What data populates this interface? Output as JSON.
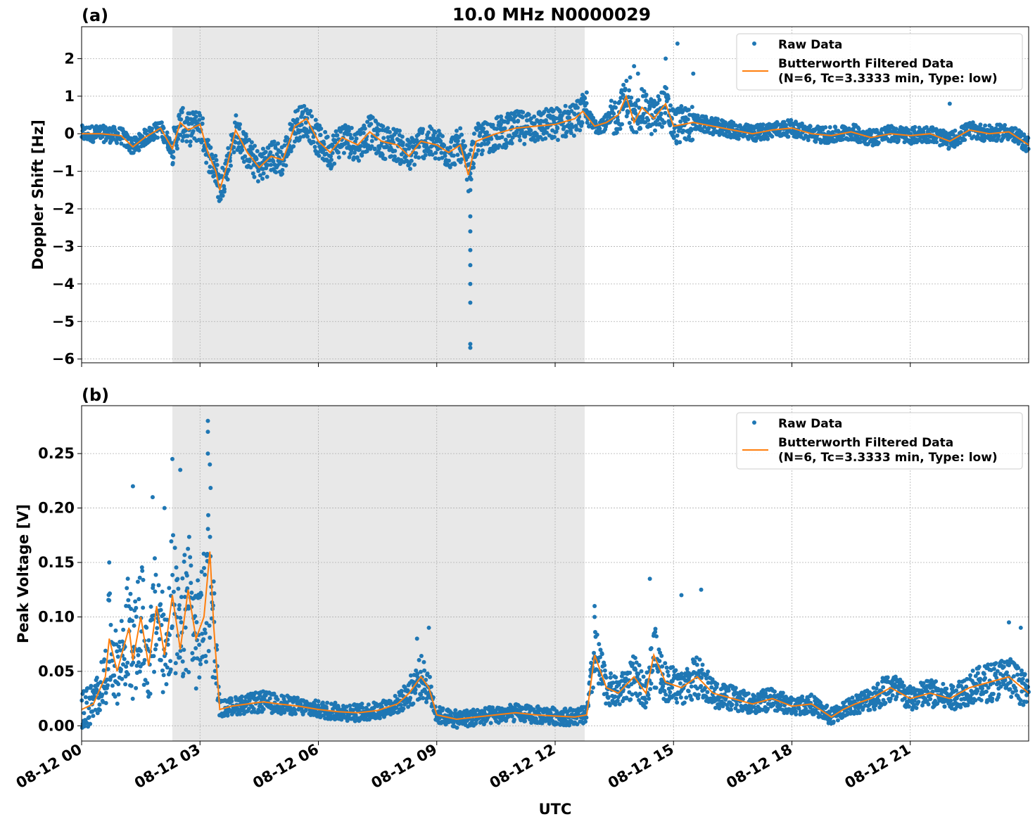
{
  "figure": {
    "title": "10.0 MHz N0000029",
    "xlabel": "UTC",
    "panel_a_label": "(a)",
    "panel_b_label": "(b)",
    "colors": {
      "raw": "#1f77b4",
      "filtered": "#ff7f0e",
      "shade": "#e8e8e8",
      "grid": "#b0b0b0"
    }
  },
  "chart_data": [
    {
      "type": "scatter",
      "panel": "(a)",
      "title": "10.0 MHz N0000029",
      "xlabel": "",
      "ylabel": "Doppler Shift [Hz]",
      "x_unit": "hours since 08-12 00 UTC",
      "xlim": [
        "08-12 00",
        "08-13 00"
      ],
      "ylim": [
        -6.1,
        2.85
      ],
      "x_tick_labels": [
        "08-12 00",
        "08-12 03",
        "08-12 06",
        "08-12 09",
        "08-12 12",
        "08-12 15",
        "08-12 18",
        "08-12 21"
      ],
      "y_ticks": [
        -6,
        -5,
        -4,
        -3,
        -2,
        -1,
        0,
        1,
        2
      ],
      "y_tick_labels": [
        "−6",
        "−5",
        "−4",
        "−3",
        "−2",
        "−1",
        "0",
        "1",
        "2"
      ],
      "shaded_span": [
        "08-12 02:18",
        "08-12 12:45"
      ],
      "grid": true,
      "legend": {
        "placement": "top-right",
        "entries": [
          "Raw Data",
          "Butterworth Filtered Data",
          "(N=6, Tc=3.3333 min, Type: low)"
        ]
      },
      "series": [
        {
          "name": "Butterworth Filtered Data",
          "kind": "line",
          "x": [
            0,
            0.5,
            1,
            1.3,
            1.6,
            2,
            2.3,
            2.5,
            2.7,
            3,
            3.2,
            3.4,
            3.5,
            3.7,
            3.9,
            4.2,
            4.5,
            4.8,
            5.1,
            5.4,
            5.7,
            6,
            6.3,
            6.6,
            7,
            7.3,
            7.6,
            8,
            8.3,
            8.6,
            9,
            9.3,
            9.6,
            9.8,
            10,
            10.5,
            11,
            11.5,
            12,
            12.5,
            12.7,
            13,
            13.3,
            13.6,
            13.8,
            14,
            14.2,
            14.5,
            14.8,
            15,
            15.5,
            16,
            16.5,
            17,
            17.5,
            18,
            18.5,
            19,
            19.5,
            20,
            20.5,
            21,
            21.5,
            22,
            22.5,
            23,
            23.5,
            24
          ],
          "y": [
            0,
            0,
            -0.05,
            -0.35,
            -0.1,
            0.15,
            -0.4,
            0.3,
            0.1,
            0.25,
            -0.5,
            -1.0,
            -1.5,
            -0.8,
            0.1,
            -0.5,
            -0.9,
            -0.6,
            -0.7,
            0.2,
            0.4,
            -0.2,
            -0.5,
            -0.1,
            -0.3,
            0.05,
            -0.2,
            -0.3,
            -0.6,
            -0.2,
            -0.3,
            -0.5,
            -0.3,
            -1.1,
            -0.2,
            0.0,
            0.15,
            0.2,
            0.25,
            0.4,
            0.6,
            0.2,
            0.3,
            0.5,
            1.0,
            0.3,
            0.7,
            0.4,
            0.8,
            0.2,
            0.3,
            0.2,
            0.1,
            0.0,
            0.1,
            0.15,
            0.0,
            -0.05,
            0.05,
            -0.1,
            0.0,
            -0.05,
            0.0,
            -0.2,
            0.1,
            0.0,
            0.05,
            -0.3
          ]
        },
        {
          "name": "Raw Data",
          "kind": "scatter",
          "x": [
            9.85,
            9.85,
            9.85,
            9.85,
            9.85,
            9.85,
            9.85,
            9.85,
            9.85,
            14.8,
            15.1,
            15.5,
            12.8,
            13.9,
            14.0,
            14.1,
            22.0
          ],
          "y": [
            -1.5,
            -2.2,
            -2.6,
            -3.1,
            -3.5,
            -4.0,
            -4.5,
            -5.6,
            -5.7,
            2.0,
            2.4,
            1.6,
            1.1,
            1.5,
            1.8,
            1.6,
            0.8
          ]
        }
      ]
    },
    {
      "type": "scatter",
      "panel": "(b)",
      "title": "",
      "xlabel": "UTC",
      "ylabel": "Peak Voltage [V]",
      "x_unit": "hours since 08-12 00 UTC",
      "xlim": [
        "08-12 00",
        "08-13 00"
      ],
      "ylim": [
        -0.014,
        0.294
      ],
      "x_tick_labels": [
        "08-12 00",
        "08-12 03",
        "08-12 06",
        "08-12 09",
        "08-12 12",
        "08-12 15",
        "08-12 18",
        "08-12 21"
      ],
      "y_ticks": [
        0.0,
        0.05,
        0.1,
        0.15,
        0.2,
        0.25
      ],
      "y_tick_labels": [
        "0.00",
        "0.05",
        "0.10",
        "0.15",
        "0.20",
        "0.25"
      ],
      "shaded_span": [
        "08-12 02:18",
        "08-12 12:45"
      ],
      "grid": true,
      "legend": {
        "placement": "top-right",
        "entries": [
          "Raw Data",
          "Butterworth Filtered Data",
          "(N=6, Tc=3.3333 min, Type: low)"
        ]
      },
      "series": [
        {
          "name": "Butterworth Filtered Data",
          "kind": "line",
          "x": [
            0,
            0.3,
            0.6,
            0.7,
            0.9,
            1.2,
            1.3,
            1.5,
            1.7,
            1.9,
            2.1,
            2.3,
            2.5,
            2.7,
            2.9,
            3.1,
            3.25,
            3.35,
            3.5,
            3.8,
            4.2,
            4.6,
            5,
            5.5,
            6,
            6.5,
            7,
            7.5,
            8,
            8.3,
            8.6,
            8.8,
            9,
            9.5,
            10,
            10.5,
            11,
            11.5,
            12,
            12.5,
            12.8,
            13.0,
            13.3,
            13.6,
            14.0,
            14.3,
            14.5,
            14.8,
            15.2,
            15.6,
            16,
            16.5,
            17,
            17.5,
            18,
            18.5,
            19,
            19.3,
            19.6,
            20,
            20.5,
            21,
            21.5,
            22,
            22.5,
            23,
            23.5,
            24
          ],
          "y": [
            0.015,
            0.02,
            0.045,
            0.08,
            0.05,
            0.09,
            0.06,
            0.1,
            0.055,
            0.11,
            0.065,
            0.12,
            0.07,
            0.125,
            0.08,
            0.1,
            0.16,
            0.09,
            0.015,
            0.018,
            0.02,
            0.022,
            0.02,
            0.018,
            0.015,
            0.013,
            0.012,
            0.014,
            0.02,
            0.03,
            0.045,
            0.035,
            0.01,
            0.006,
            0.008,
            0.01,
            0.012,
            0.01,
            0.009,
            0.008,
            0.01,
            0.065,
            0.035,
            0.03,
            0.045,
            0.03,
            0.065,
            0.04,
            0.035,
            0.045,
            0.03,
            0.025,
            0.02,
            0.025,
            0.018,
            0.02,
            0.008,
            0.015,
            0.02,
            0.025,
            0.035,
            0.025,
            0.03,
            0.025,
            0.035,
            0.04,
            0.045,
            0.03
          ]
        },
        {
          "name": "Raw Data",
          "kind": "scatter",
          "x": [
            3.2,
            3.2,
            3.2,
            3.25,
            2.3,
            2.5,
            1.3,
            1.8,
            2.1,
            0.7,
            8.8,
            8.5,
            13.0,
            13.0,
            14.4,
            15.7,
            15.2,
            23.5,
            23.8
          ],
          "y": [
            0.28,
            0.27,
            0.25,
            0.24,
            0.245,
            0.235,
            0.22,
            0.21,
            0.2,
            0.15,
            0.09,
            0.08,
            0.11,
            0.1,
            0.135,
            0.125,
            0.12,
            0.095,
            0.09
          ]
        }
      ]
    }
  ]
}
